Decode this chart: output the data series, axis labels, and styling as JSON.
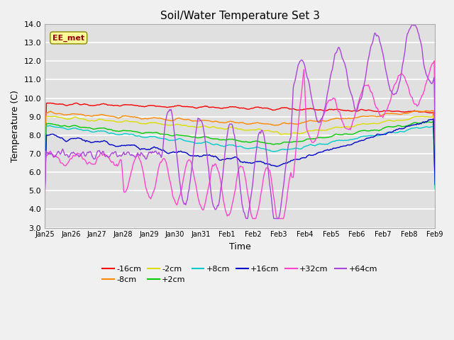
{
  "title": "Soil/Water Temperature Set 3",
  "xlabel": "Time",
  "ylabel": "Temperature (C)",
  "ylim": [
    3.0,
    14.0
  ],
  "yticks": [
    3.0,
    4.0,
    5.0,
    6.0,
    7.0,
    8.0,
    9.0,
    10.0,
    11.0,
    12.0,
    13.0,
    14.0
  ],
  "annotation_text": "EE_met",
  "annotation_box_color": "#ffff99",
  "annotation_text_color": "#990000",
  "colors": {
    "-16cm": "#ff0000",
    "-8cm": "#ff8800",
    "-2cm": "#dddd00",
    "+2cm": "#00cc00",
    "+8cm": "#00cccc",
    "+16cm": "#0000cc",
    "+32cm": "#ff44cc",
    "+64cm": "#aa44dd"
  },
  "xtick_labels": [
    "Jan 25",
    "Jan 26",
    "Jan 27",
    "Jan 28",
    "Jan 29",
    "Jan 30",
    "Jan 31",
    "Feb 1",
    "Feb 2",
    "Feb 3",
    "Feb 4",
    "Feb 5",
    "Feb 6",
    "Feb 7",
    "Feb 8",
    "Feb 9"
  ],
  "n_points": 480
}
